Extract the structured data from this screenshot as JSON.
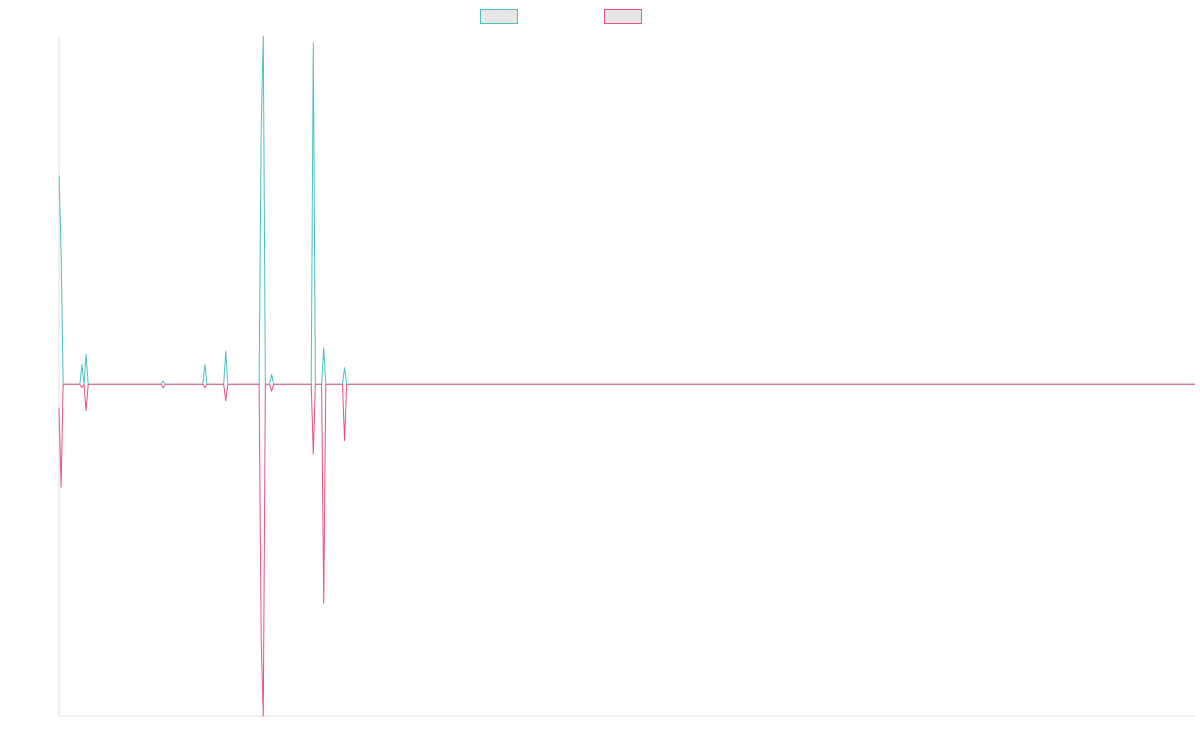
{
  "chart_data": {
    "type": "line",
    "title": "",
    "xlabel": "",
    "ylabel": "",
    "grid": false,
    "legend_position": "top-center",
    "x": [
      0,
      1,
      2,
      3,
      4,
      5,
      6,
      7,
      8,
      9,
      10,
      11,
      12,
      13,
      14,
      15,
      16,
      17,
      18,
      19,
      20,
      21,
      22,
      23,
      24,
      25,
      26,
      27,
      28,
      29,
      30,
      31,
      32,
      33,
      34,
      35,
      36,
      37,
      38,
      39,
      40,
      41,
      42,
      43,
      44,
      45,
      46,
      47,
      48,
      49,
      50,
      51,
      52,
      53,
      54,
      55,
      56,
      57,
      58,
      59,
      60,
      61,
      62,
      63,
      64,
      65,
      66,
      67,
      68,
      69,
      70,
      71,
      72,
      73,
      74,
      75,
      76,
      77,
      78,
      79,
      80,
      81,
      82,
      83,
      84,
      85,
      86,
      87,
      88,
      89,
      90,
      91,
      92,
      93,
      94,
      95,
      96,
      97,
      98,
      99,
      100,
      101,
      102,
      103,
      104,
      105,
      106,
      107,
      108,
      109,
      110,
      111,
      112,
      113,
      114,
      115,
      116,
      117,
      118,
      119,
      120,
      121,
      122,
      123,
      124,
      125,
      126,
      127,
      128,
      129,
      130,
      131,
      132,
      133,
      134,
      135,
      136,
      137,
      138,
      139,
      140,
      141,
      142,
      143,
      144,
      145,
      146,
      147,
      148,
      149,
      150,
      151,
      152,
      153,
      154,
      155,
      156,
      157,
      158,
      159,
      160,
      161,
      162,
      163,
      164,
      165,
      166,
      167,
      168,
      169,
      170,
      171,
      172,
      173,
      174,
      175,
      176,
      177,
      178,
      179,
      180,
      181,
      182,
      183,
      184,
      185,
      186,
      187,
      188,
      189,
      190,
      191,
      192,
      193,
      194,
      195,
      196,
      197,
      198,
      199,
      200,
      201,
      202,
      203,
      204,
      205,
      206,
      207,
      208,
      209,
      210,
      211,
      212,
      213,
      214,
      215,
      216,
      217,
      218,
      219,
      220,
      221,
      222,
      223,
      224,
      225,
      226,
      227,
      228,
      229,
      230,
      231,
      232,
      233,
      234,
      235,
      236,
      237,
      238,
      239,
      240,
      241,
      242,
      243,
      244,
      245,
      246,
      247,
      248,
      249,
      250,
      251,
      252,
      253,
      254,
      255,
      256,
      257,
      258,
      259,
      260,
      261,
      262,
      263,
      264,
      265,
      266,
      267,
      268,
      269,
      270,
      271,
      272,
      273,
      274,
      275,
      276,
      277,
      278,
      279,
      280,
      281,
      282,
      283,
      284,
      285,
      286,
      287,
      288,
      289,
      290,
      291,
      292,
      293,
      294,
      295,
      296,
      297,
      298,
      299,
      300,
      301,
      302,
      303,
      304,
      305,
      306,
      307,
      308,
      309,
      310,
      311,
      312,
      313,
      314,
      315,
      316,
      317,
      318,
      319,
      320,
      321,
      322,
      323,
      324,
      325,
      326,
      327,
      328,
      329,
      330,
      331,
      332,
      333,
      334,
      335,
      336,
      337,
      338,
      339,
      340,
      341,
      342,
      343,
      344,
      345,
      346,
      347,
      348,
      349,
      350,
      351,
      352,
      353,
      354,
      355,
      356,
      357,
      358,
      359,
      360,
      361,
      362,
      363,
      364,
      365,
      366,
      367,
      368,
      369,
      370,
      371,
      372,
      373,
      374,
      375,
      376,
      377,
      378,
      379,
      380,
      381,
      382,
      383,
      384,
      385,
      386,
      387,
      388,
      389,
      390,
      391,
      392,
      393,
      394,
      395,
      396,
      397,
      398,
      399,
      400,
      401,
      402,
      403,
      404,
      405,
      406,
      407,
      408,
      409,
      410,
      411,
      412,
      413,
      414,
      415,
      416,
      417,
      418,
      419,
      420,
      421,
      422,
      423,
      424,
      425,
      426,
      427,
      428,
      429,
      430,
      431,
      432,
      433,
      434,
      435,
      436,
      437,
      438,
      439,
      440,
      441,
      442,
      443,
      444,
      445,
      446,
      447,
      448,
      449,
      450,
      451,
      452,
      453,
      454,
      455,
      456,
      457,
      458,
      459,
      460,
      461,
      462,
      463,
      464,
      465,
      466,
      467,
      468,
      469,
      470,
      471,
      472,
      473,
      474,
      475,
      476,
      477,
      478,
      479,
      480,
      481,
      482,
      483,
      484,
      485,
      486,
      487,
      488,
      489,
      490,
      491,
      492,
      493,
      494,
      495,
      496,
      497,
      498,
      499,
      500,
      501,
      502,
      503,
      504,
      505,
      506,
      507,
      508,
      509,
      510,
      511,
      512,
      513,
      514,
      515,
      516,
      517,
      518,
      519,
      520,
      521,
      522,
      523,
      524,
      525,
      526,
      527,
      528,
      529,
      530,
      531,
      532,
      533,
      534,
      535,
      536,
      537,
      538,
      539,
      540,
      541,
      542,
      543,
      544,
      545
    ],
    "ylim": [
      -1,
      1.05
    ],
    "series": [
      {
        "name": "",
        "color": "#4bc0c0",
        "points": [
          [
            0,
            0.63
          ],
          [
            1,
            0.4
          ],
          [
            2,
            0
          ],
          [
            10,
            0
          ],
          [
            11,
            0.06
          ],
          [
            12,
            0
          ],
          [
            13,
            0.09
          ],
          [
            14,
            0
          ],
          [
            49,
            0
          ],
          [
            50,
            0.01
          ],
          [
            51,
            0
          ],
          [
            69,
            0
          ],
          [
            70,
            0.06
          ],
          [
            71,
            0
          ],
          [
            79,
            0
          ],
          [
            80,
            0.1
          ],
          [
            81,
            0
          ],
          [
            96,
            0
          ],
          [
            97,
            0.77
          ],
          [
            98,
            1.05
          ],
          [
            99,
            0
          ],
          [
            101,
            0
          ],
          [
            102,
            0.03
          ],
          [
            103,
            0
          ],
          [
            121,
            0
          ],
          [
            122,
            1.03
          ],
          [
            123,
            0
          ],
          [
            126,
            0
          ],
          [
            127,
            0.11
          ],
          [
            128,
            0
          ],
          [
            136,
            0
          ],
          [
            137,
            0.05
          ],
          [
            138,
            0
          ],
          [
            545,
            0
          ]
        ]
      },
      {
        "name": "",
        "color": "#e8547a",
        "points": [
          [
            0,
            -0.07
          ],
          [
            1,
            -0.31
          ],
          [
            2,
            0
          ],
          [
            10,
            0
          ],
          [
            11,
            -0.01
          ],
          [
            12,
            0
          ],
          [
            13,
            -0.08
          ],
          [
            14,
            0
          ],
          [
            49,
            0
          ],
          [
            50,
            -0.01
          ],
          [
            51,
            0
          ],
          [
            69,
            0
          ],
          [
            70,
            -0.01
          ],
          [
            71,
            0
          ],
          [
            79,
            0
          ],
          [
            80,
            -0.05
          ],
          [
            81,
            0
          ],
          [
            96,
            0
          ],
          [
            97,
            -0.77
          ],
          [
            98,
            -1.0
          ],
          [
            99,
            0
          ],
          [
            101,
            0
          ],
          [
            102,
            -0.02
          ],
          [
            103,
            0
          ],
          [
            121,
            0
          ],
          [
            122,
            -0.21
          ],
          [
            123,
            0
          ],
          [
            126,
            0
          ],
          [
            127,
            -0.66
          ],
          [
            128,
            0
          ],
          [
            136,
            0
          ],
          [
            137,
            -0.17
          ],
          [
            138,
            0
          ],
          [
            545,
            0
          ]
        ]
      }
    ]
  }
}
